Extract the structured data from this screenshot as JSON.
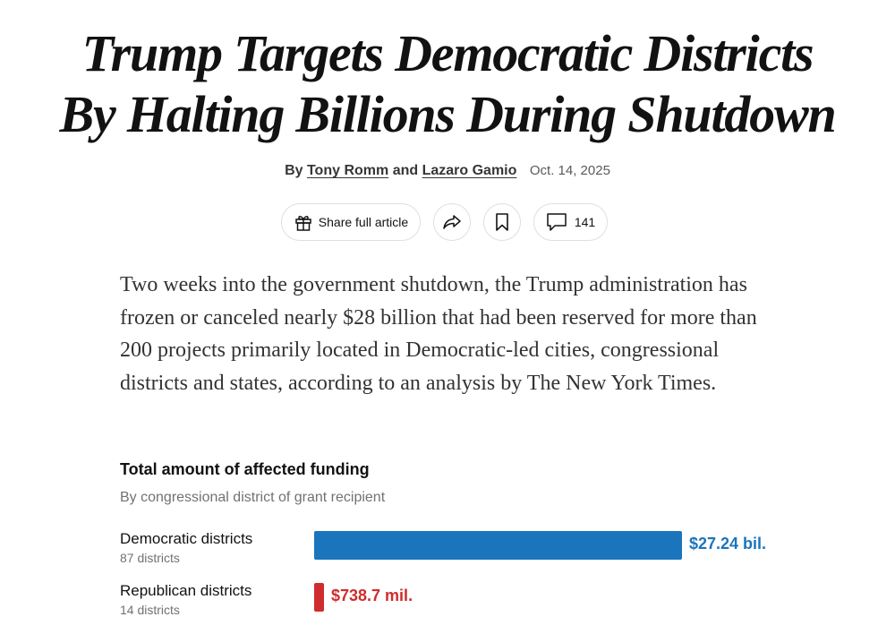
{
  "article": {
    "headline_line1": "Trump Targets Democratic Districts",
    "headline_line2": "By Halting Billions During Shutdown",
    "byline": {
      "by": "By",
      "author1": "Tony Romm",
      "and": "and",
      "author2": "Lazaro Gamio",
      "date": "Oct. 14, 2025"
    },
    "actions": {
      "share_full_label": "Share full article",
      "comment_count": "141"
    },
    "summary": "Two weeks into the government shutdown, the Trump administration has frozen or canceled nearly $28 billion that had been reserved for more than 200 projects primarily located in Democratic-led cities, congressional districts and states, according to an analysis by The New York Times."
  },
  "colors": {
    "democratic": "#1a75bc",
    "republican": "#cf2d2d"
  },
  "chart_data": {
    "type": "bar",
    "orientation": "horizontal",
    "title": "Total amount of affected funding",
    "subtitle": "By congressional district of grant recipient",
    "categories": [
      "Democratic districts",
      "Republican districts"
    ],
    "sublabels": [
      "87 districts",
      "14 districts"
    ],
    "values": [
      27.24,
      0.7387
    ],
    "value_labels": [
      "$27.24 bil.",
      "$738.7 mil."
    ],
    "units": "billions of dollars"
  }
}
